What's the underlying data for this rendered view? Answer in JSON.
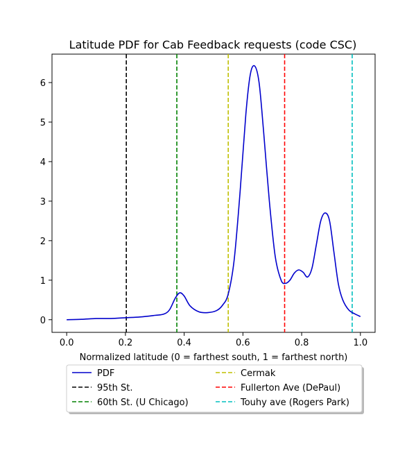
{
  "chart_data": {
    "type": "line",
    "title": "Latitude PDF for Cab Feedback  requests (code CSC)",
    "xlabel": "Normalized latitude (0 = farthest south, 1 = farthest north)",
    "ylabel": "",
    "xlim": [
      -0.05,
      1.05
    ],
    "ylim": [
      -0.32,
      6.72
    ],
    "xticks": [
      0.0,
      0.2,
      0.4,
      0.6,
      0.8,
      1.0
    ],
    "xtick_labels": [
      "0.0",
      "0.2",
      "0.4",
      "0.6",
      "0.8",
      "1.0"
    ],
    "yticks": [
      0,
      1,
      2,
      3,
      4,
      5,
      6
    ],
    "ytick_labels": [
      "0",
      "1",
      "2",
      "3",
      "4",
      "5",
      "6"
    ],
    "grid": false,
    "legend_position": "below",
    "series": [
      {
        "name": "PDF",
        "color": "#0000cc",
        "style": "solid",
        "x": [
          0.0,
          0.05,
          0.1,
          0.15,
          0.2,
          0.25,
          0.3,
          0.33,
          0.35,
          0.37,
          0.385,
          0.4,
          0.42,
          0.45,
          0.48,
          0.51,
          0.53,
          0.55,
          0.57,
          0.59,
          0.61,
          0.625,
          0.64,
          0.655,
          0.67,
          0.69,
          0.71,
          0.73,
          0.745,
          0.76,
          0.775,
          0.79,
          0.805,
          0.82,
          0.835,
          0.85,
          0.865,
          0.88,
          0.895,
          0.91,
          0.925,
          0.94,
          0.96,
          0.98,
          1.0
        ],
        "y": [
          0.0,
          0.01,
          0.03,
          0.03,
          0.05,
          0.07,
          0.11,
          0.14,
          0.25,
          0.55,
          0.68,
          0.6,
          0.35,
          0.2,
          0.18,
          0.23,
          0.36,
          0.65,
          1.5,
          3.2,
          5.2,
          6.2,
          6.42,
          6.0,
          4.8,
          3.0,
          1.6,
          1.0,
          0.92,
          1.0,
          1.18,
          1.26,
          1.2,
          1.08,
          1.3,
          1.9,
          2.5,
          2.7,
          2.5,
          1.7,
          0.9,
          0.5,
          0.25,
          0.15,
          0.08
        ]
      }
    ],
    "vlines": [
      {
        "name": "95th St.",
        "x": 0.203,
        "color": "#000000"
      },
      {
        "name": "60th St. (U Chicago)",
        "x": 0.375,
        "color": "#008000"
      },
      {
        "name": "Cermak",
        "x": 0.55,
        "color": "#bfbf00"
      },
      {
        "name": "Fullerton Ave (DePaul)",
        "x": 0.742,
        "color": "#ff0000"
      },
      {
        "name": "Touhy ave (Rogers Park)",
        "x": 0.972,
        "color": "#00bfbf"
      }
    ]
  }
}
